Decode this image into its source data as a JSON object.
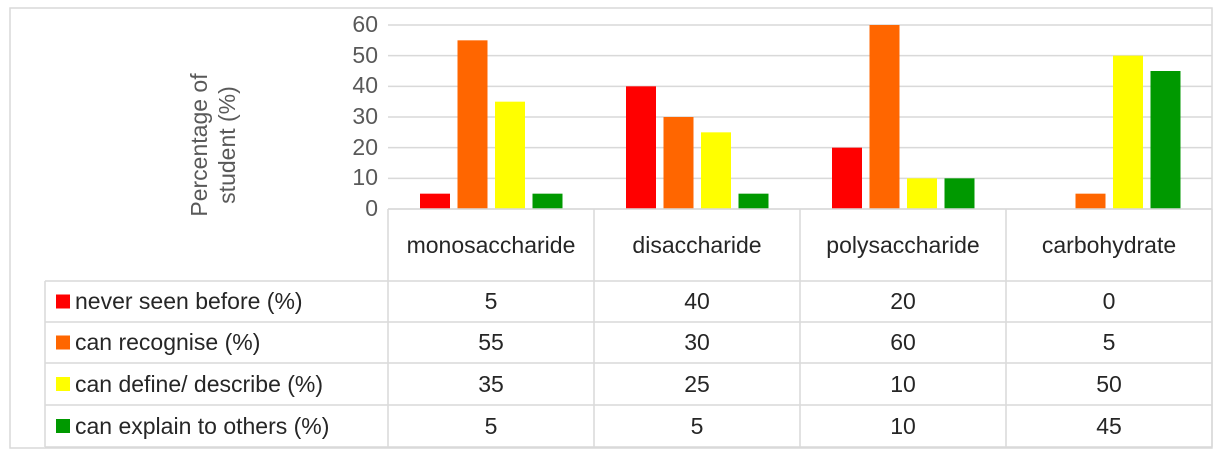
{
  "chart_data": {
    "type": "bar",
    "y_label": "Percentage of student (%)",
    "categories": [
      "monosaccharide",
      "disaccharide",
      "polysaccharide",
      "carbohydrate"
    ],
    "series": [
      {
        "name": "never seen before (%)",
        "color": "#ff0000",
        "values": [
          5,
          40,
          20,
          0
        ]
      },
      {
        "name": "can recognise (%)",
        "color": "#ff6600",
        "values": [
          55,
          30,
          60,
          5
        ]
      },
      {
        "name": "can define/ describe (%)",
        "color": "#ffff00",
        "values": [
          35,
          25,
          10,
          50
        ]
      },
      {
        "name": "can explain to others (%)",
        "color": "#009900",
        "values": [
          5,
          5,
          10,
          45
        ]
      }
    ],
    "ylim": [
      0,
      60
    ],
    "yticks": [
      0,
      10,
      20,
      30,
      40,
      50,
      60
    ],
    "grid": true,
    "data_table": true
  }
}
